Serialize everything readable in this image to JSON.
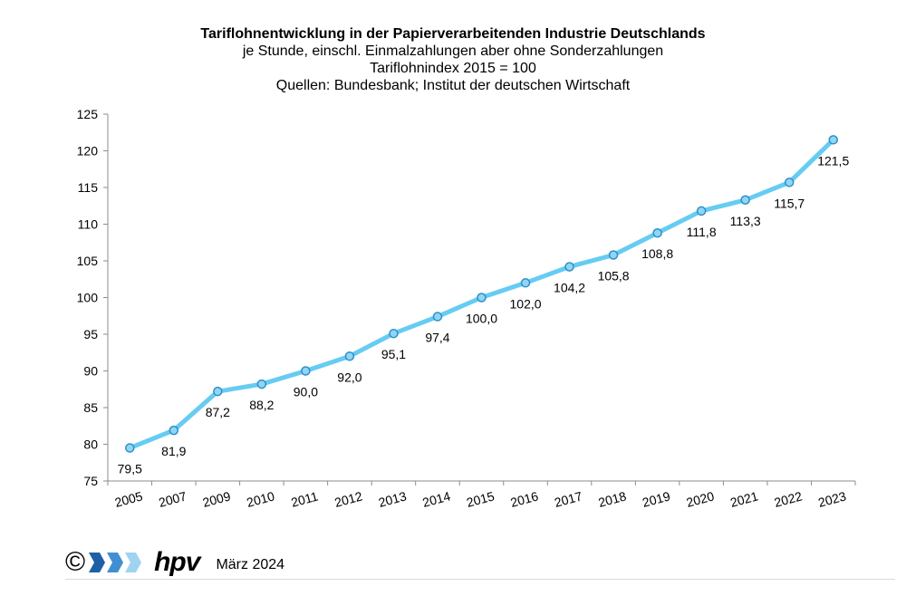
{
  "chart_data": {
    "type": "line",
    "title": "Tariflohnentwicklung in der Papierverarbeitenden Industrie Deutschlands",
    "subtitles": [
      "je Stunde, einschl. Einmalzahlungen  aber ohne Sonderzahlungen",
      "Tariflohnindex 2015 = 100",
      "Quellen: Bundesbank; Institut der deutschen Wirtschaft"
    ],
    "categories": [
      "2005",
      "2007",
      "2009",
      "2010",
      "2011",
      "2012",
      "2013",
      "2014",
      "2015",
      "2016",
      "2017",
      "2018",
      "2019",
      "2020",
      "2021",
      "2022",
      "2023"
    ],
    "series": [
      {
        "values": [
          79.5,
          81.9,
          87.2,
          88.2,
          90.0,
          92.0,
          95.1,
          97.4,
          100.0,
          102.0,
          104.2,
          105.8,
          108.8,
          111.8,
          113.3,
          115.7,
          121.5
        ],
        "labels": [
          "79,5",
          "81,9",
          "87,2",
          "88,2",
          "90,0",
          "92,0",
          "95,1",
          "97,4",
          "100,0",
          "102,0",
          "104,2",
          "105,8",
          "108,8",
          "111,8",
          "113,3",
          "115,7",
          "121,5"
        ],
        "color": "#66ccf2",
        "marker_color": "#2e8fc9"
      }
    ],
    "ylim": [
      75,
      125
    ],
    "yticks": [
      "75",
      "80",
      "85",
      "90",
      "95",
      "100",
      "105",
      "110",
      "115",
      "120",
      "125"
    ],
    "grid": false,
    "legend": "none"
  },
  "footer": {
    "copyright": "©",
    "brand": "hpv",
    "date": "März 2024"
  }
}
